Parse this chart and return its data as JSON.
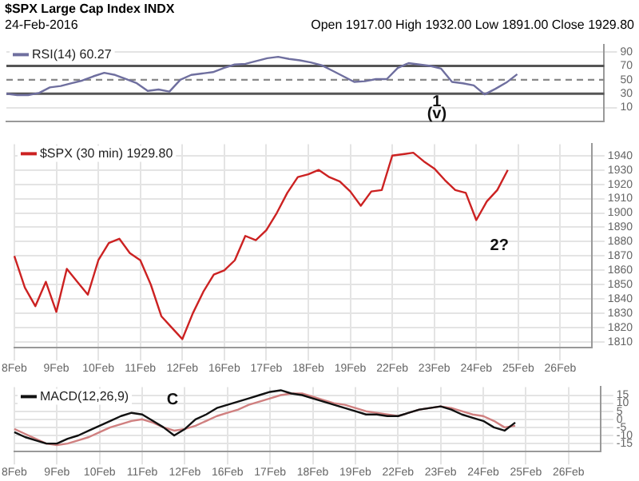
{
  "chart_data": [
    {
      "type": "line",
      "title": "$SPX Large Cap Index INDX",
      "subtitle": "24-Feb-2016",
      "annotations": [
        "Open 1917.00 High 1932.00 Low 1891.00 Close 1929.80",
        "1",
        "(v)"
      ],
      "categories": [
        null,
        null,
        null,
        null,
        null,
        null,
        null,
        null,
        null,
        null,
        null,
        null,
        null,
        null,
        null,
        null,
        null,
        null,
        null,
        null,
        null,
        null,
        null,
        null,
        null,
        null,
        null,
        null,
        null,
        null,
        null,
        null,
        null,
        null,
        null,
        null,
        null,
        null,
        null,
        null,
        null,
        null,
        null,
        null,
        null,
        null,
        null,
        null,
        null,
        null,
        null,
        null,
        null,
        null,
        null,
        null
      ],
      "ylim": [
        -10,
        100
      ],
      "yticks": [
        10,
        30,
        50,
        70,
        90
      ],
      "tick_labels": "y",
      "grid": "y",
      "legend": "top left",
      "marker": "none",
      "ref_lines": [
        {
          "axis": "y",
          "value": 70,
          "color": "#555555",
          "line_style": "solid"
        },
        {
          "axis": "y",
          "value": 30,
          "color": "#555555",
          "line_style": "solid"
        },
        {
          "axis": "y",
          "value": 50,
          "color": "#888888",
          "line_style": "dashed"
        }
      ],
      "series": [
        {
          "name": "RSI(14) 60.27",
          "color": "#6f6f9f",
          "values": [
            30,
            28,
            28,
            31,
            39,
            41,
            45,
            49,
            55,
            60,
            57,
            51,
            45,
            34,
            36,
            33,
            50,
            57,
            59,
            61,
            67,
            72,
            73,
            77,
            81,
            83,
            80,
            78,
            75,
            71,
            63,
            55,
            47,
            48,
            51,
            51,
            67,
            74,
            72,
            70,
            66,
            47,
            45,
            42,
            29,
            37,
            46,
            58,
            null,
            null,
            null,
            null,
            null,
            null,
            null,
            null
          ]
        }
      ]
    },
    {
      "type": "line",
      "annotations": [
        "2?"
      ],
      "categories": [
        "8Feb",
        null,
        null,
        null,
        "9Feb",
        null,
        null,
        null,
        "10Feb",
        null,
        null,
        null,
        "11Feb",
        null,
        null,
        null,
        "12Feb",
        null,
        null,
        null,
        "16Feb",
        null,
        null,
        null,
        "17Feb",
        null,
        null,
        null,
        "18Feb",
        null,
        null,
        null,
        "19Feb",
        null,
        null,
        null,
        "22Feb",
        null,
        null,
        null,
        "23Feb",
        null,
        null,
        null,
        "24Feb",
        null,
        null,
        null,
        "25Feb",
        null,
        null,
        null,
        "26Feb",
        null,
        null,
        null
      ],
      "ylim": [
        1806,
        1948
      ],
      "yticks": [
        1810,
        1820,
        1830,
        1840,
        1850,
        1860,
        1870,
        1880,
        1890,
        1900,
        1910,
        1920,
        1930,
        1940
      ],
      "grid": true,
      "legend": "top left",
      "marker": "none",
      "series": [
        {
          "name": "$SPX (30 min) 1929.80",
          "color": "#cc2222",
          "values": [
            1870,
            1848,
            1835,
            1852,
            1831,
            1861,
            1852,
            1843,
            1867,
            1879,
            1882,
            1872,
            1867,
            1850,
            1828,
            1820,
            1812,
            1830,
            1845,
            1857,
            1860,
            1867,
            1884,
            1881,
            1888,
            1900,
            1914,
            1925,
            1927,
            1930,
            1925,
            1922,
            1915,
            1905,
            1915,
            1916,
            1940,
            1941,
            1942,
            1936,
            1931,
            1923,
            1916,
            1914,
            1895,
            1908,
            1916,
            1930,
            null,
            null,
            null,
            null,
            null,
            null,
            null,
            null
          ]
        }
      ]
    },
    {
      "type": "line",
      "annotations": [
        "C"
      ],
      "categories": [
        "8Feb",
        null,
        null,
        null,
        "9Feb",
        null,
        null,
        null,
        "10Feb",
        null,
        null,
        null,
        "11Feb",
        null,
        null,
        null,
        "12Feb",
        null,
        null,
        null,
        "16Feb",
        null,
        null,
        null,
        "17Feb",
        null,
        null,
        null,
        "18Feb",
        null,
        null,
        null,
        "19Feb",
        null,
        null,
        null,
        "22Feb",
        null,
        null,
        null,
        "23Feb",
        null,
        null,
        null,
        "24Feb",
        null,
        null,
        null,
        "25Feb",
        null,
        null,
        null,
        "26Feb",
        null,
        null,
        null
      ],
      "ylim": [
        -20,
        20
      ],
      "yticks": [
        -15,
        -10,
        -5,
        0,
        5,
        10,
        15
      ],
      "grid": true,
      "legend": "top left",
      "marker": "none",
      "series": [
        {
          "name": "MACD(12,26,9)",
          "color": "#111111",
          "values": [
            -8,
            -11,
            -13,
            -15,
            -15,
            -12,
            -10,
            -7,
            -4,
            -1,
            2,
            4,
            3,
            -1,
            -5,
            -10,
            -6,
            0,
            3,
            7,
            9,
            11,
            13,
            15,
            17,
            18,
            16,
            15,
            13,
            11,
            9,
            7,
            5,
            3,
            3,
            2,
            2,
            4,
            6,
            7,
            8,
            6,
            3,
            1,
            -1,
            -5,
            -7,
            -2,
            null,
            null,
            null,
            null,
            null,
            null,
            null,
            null
          ]
        },
        {
          "color": "#d08080",
          "values": [
            -6,
            -9,
            -12,
            -15,
            -16,
            -15,
            -13,
            -11,
            -8,
            -5,
            -3,
            -1,
            0,
            -2,
            -5,
            -7,
            -6,
            -4,
            -1,
            2,
            4,
            6,
            9,
            11,
            13,
            15,
            16,
            16,
            14,
            12,
            10,
            9,
            7,
            5,
            4,
            3,
            2,
            4,
            6,
            7,
            8,
            7,
            5,
            3,
            2,
            -1,
            -5,
            -4,
            null,
            null,
            null,
            null,
            null,
            null,
            null,
            null
          ]
        }
      ]
    }
  ]
}
